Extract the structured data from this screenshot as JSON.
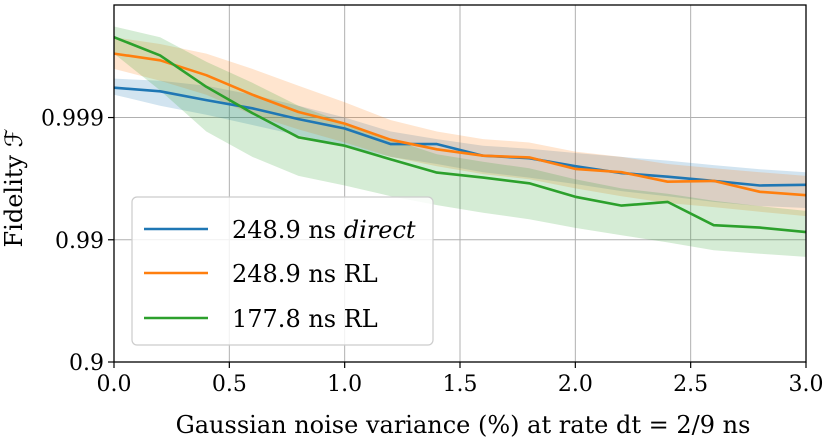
{
  "chart_data": {
    "type": "line",
    "title": "",
    "xlabel": "Gaussian noise variance (%) at rate dt = 2/9 ns",
    "ylabel": "Fidelity ℱ",
    "xlim": [
      0.0,
      3.0
    ],
    "ylim": [
      0.9,
      0.99988
    ],
    "yscale": "log-infidelity",
    "grid": true,
    "legend_position": "lower-left",
    "x_ticks": [
      "0.0",
      "0.5",
      "1.0",
      "1.5",
      "2.0",
      "2.5",
      "3.0"
    ],
    "y_ticks": [
      "0.9",
      "0.99",
      "0.999"
    ],
    "x": [
      0.0,
      0.2,
      0.4,
      0.6,
      0.8,
      1.0,
      1.2,
      1.4,
      1.6,
      1.8,
      2.0,
      2.2,
      2.4,
      2.6,
      2.8,
      3.0
    ],
    "series": [
      {
        "name": "248.9 ns direct",
        "name_prefix": "248.9 ns ",
        "name_emph": "direct",
        "color": "#1f77b4",
        "values": [
          0.99943,
          0.99939,
          0.99928,
          0.99916,
          0.99897,
          0.99877,
          0.99835,
          0.99835,
          0.99795,
          0.99785,
          0.9975,
          0.99715,
          0.99695,
          0.9967,
          0.9964,
          0.99645
        ],
        "lower": [
          0.99935,
          0.9992,
          0.99905,
          0.99885,
          0.9986,
          0.9983,
          0.9979,
          0.9976,
          0.9972,
          0.9969,
          0.9965,
          0.996,
          0.9956,
          0.9951,
          0.9947,
          0.9945
        ],
        "upper": [
          0.99952,
          0.9995,
          0.99945,
          0.99935,
          0.9992,
          0.999,
          0.9987,
          0.9985,
          0.9983,
          0.9982,
          0.99805,
          0.9979,
          0.99775,
          0.99755,
          0.99735,
          0.9972
        ]
      },
      {
        "name": "248.9 ns RL",
        "color": "#ff7f0e",
        "values": [
          0.9997,
          0.99966,
          0.99955,
          0.99935,
          0.9991,
          0.99888,
          0.99848,
          0.99818,
          0.99795,
          0.99788,
          0.99737,
          0.9972,
          0.99665,
          0.9967,
          0.99595,
          0.99568
        ],
        "lower": [
          0.9996,
          0.9995,
          0.99935,
          0.99905,
          0.99875,
          0.9984,
          0.9979,
          0.9975,
          0.9971,
          0.9968,
          0.9962,
          0.9956,
          0.995,
          0.9946,
          0.9941,
          0.9936
        ],
        "upper": [
          0.99978,
          0.99975,
          0.9997,
          0.9996,
          0.99945,
          0.99925,
          0.99895,
          0.9987,
          0.9985,
          0.9984,
          0.9981,
          0.9979,
          0.9976,
          0.9974,
          0.9972,
          0.997
        ]
      },
      {
        "name": "177.8 ns RL",
        "color": "#2ca02c",
        "values": [
          0.99978,
          0.99969,
          0.99944,
          0.99908,
          0.99855,
          0.9983,
          0.9978,
          0.99718,
          0.9969,
          0.99655,
          0.99555,
          0.99475,
          0.9951,
          0.9924,
          0.99205,
          0.99135
        ],
        "lower": [
          0.9997,
          0.9994,
          0.9987,
          0.9979,
          0.997,
          0.9964,
          0.9956,
          0.9948,
          0.994,
          0.9932,
          0.992,
          0.9908,
          0.9895,
          0.9878,
          0.987,
          0.9862
        ],
        "upper": [
          0.99982,
          0.99978,
          0.99965,
          0.99948,
          0.9992,
          0.9989,
          0.9985,
          0.998,
          0.9977,
          0.9974,
          0.9968,
          0.9962,
          0.9958,
          0.9952,
          0.9947,
          0.9942
        ]
      }
    ]
  }
}
